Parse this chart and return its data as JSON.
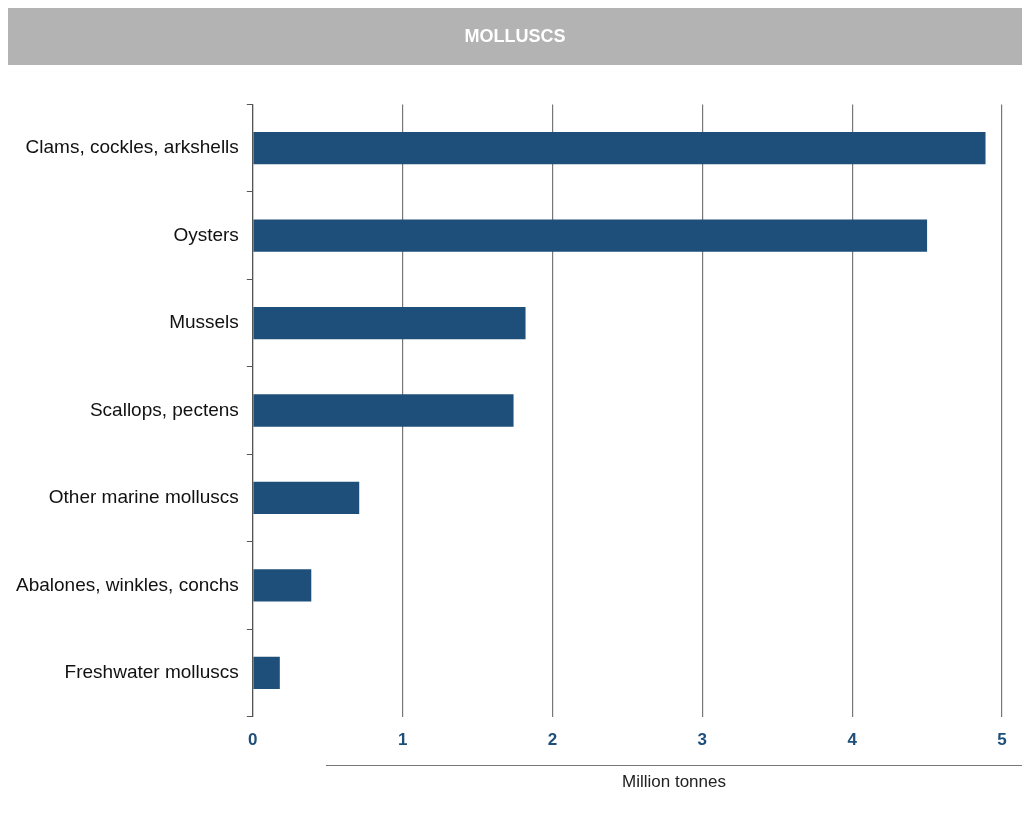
{
  "chart_data": {
    "type": "bar",
    "orientation": "horizontal",
    "title": "MOLLUSCS",
    "xlabel": "Million tonnes",
    "categories": [
      "Clams, cockles, arkshells",
      "Oysters",
      "Mussels",
      "Scallops, pectens",
      "Other marine molluscs",
      "Abalones, winkles, conchs",
      "Freshwater molluscs"
    ],
    "values": [
      4.89,
      4.5,
      1.82,
      1.74,
      0.71,
      0.39,
      0.18
    ],
    "color": "#1d4f7a",
    "xlim": [
      0,
      5
    ],
    "xticks": [
      0,
      1,
      2,
      3,
      4,
      5
    ],
    "grid": "x",
    "legend": false
  }
}
